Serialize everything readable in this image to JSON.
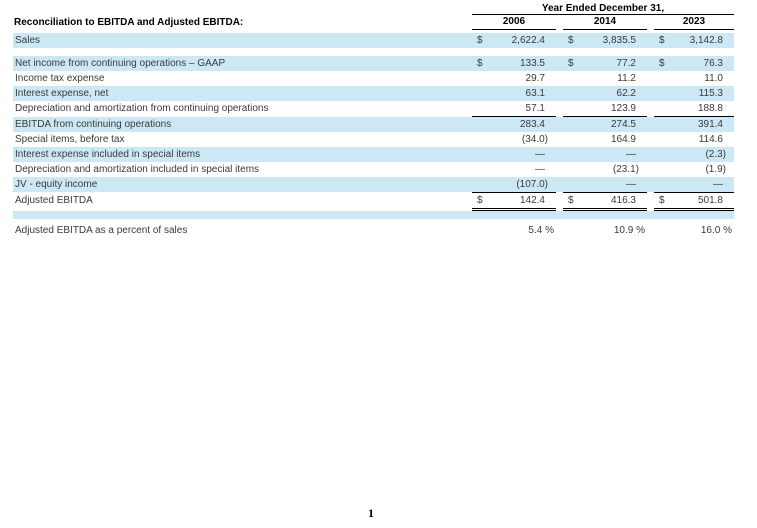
{
  "header": {
    "title": "Reconciliation to EBITDA and Adjusted EBITDA:",
    "period_label": "Year Ended December 31,",
    "years": [
      "2006",
      "2014",
      "2023"
    ]
  },
  "table": {
    "rows": [
      {
        "label": "Sales",
        "cells": [
          {
            "cur": "$",
            "val": "2,622.4"
          },
          {
            "cur": "$",
            "val": "3,835.5"
          },
          {
            "cur": "$",
            "val": "3,142.8"
          }
        ]
      },
      {
        "label": "Net income from continuing operations – GAAP",
        "cells": [
          {
            "cur": "$",
            "val": "133.5"
          },
          {
            "cur": "$",
            "val": "77.2"
          },
          {
            "cur": "$",
            "val": "76.3"
          }
        ]
      },
      {
        "label": "Income tax expense",
        "cells": [
          {
            "cur": "",
            "val": "29.7"
          },
          {
            "cur": "",
            "val": "11.2"
          },
          {
            "cur": "",
            "val": "11.0"
          }
        ]
      },
      {
        "label": "Interest expense, net",
        "cells": [
          {
            "cur": "",
            "val": "63.1"
          },
          {
            "cur": "",
            "val": "62.2"
          },
          {
            "cur": "",
            "val": "115.3"
          }
        ]
      },
      {
        "label": "Depreciation and amortization from continuing operations",
        "cells": [
          {
            "cur": "",
            "val": "57.1"
          },
          {
            "cur": "",
            "val": "123.9"
          },
          {
            "cur": "",
            "val": "188.8"
          }
        ]
      },
      {
        "label": "EBITDA from continuing operations",
        "cells": [
          {
            "cur": "",
            "val": "283.4"
          },
          {
            "cur": "",
            "val": "274.5"
          },
          {
            "cur": "",
            "val": "391.4"
          }
        ]
      },
      {
        "label": "Special items, before tax",
        "cells": [
          {
            "cur": "",
            "val": "(34.0)"
          },
          {
            "cur": "",
            "val": "164.9"
          },
          {
            "cur": "",
            "val": "114.6"
          }
        ]
      },
      {
        "label": "Interest expense included in special items",
        "cells": [
          {
            "cur": "",
            "val": "—"
          },
          {
            "cur": "",
            "val": "—"
          },
          {
            "cur": "",
            "val": "(2.3)"
          }
        ]
      },
      {
        "label": "Depreciation and amortization included in special items",
        "cells": [
          {
            "cur": "",
            "val": "—"
          },
          {
            "cur": "",
            "val": "(23.1)"
          },
          {
            "cur": "",
            "val": "(1.9)"
          }
        ]
      },
      {
        "label": "JV - equity income",
        "cells": [
          {
            "cur": "",
            "val": "(107.0)"
          },
          {
            "cur": "",
            "val": "—"
          },
          {
            "cur": "",
            "val": "—"
          }
        ]
      },
      {
        "label": "Adjusted EBITDA",
        "cells": [
          {
            "cur": "$",
            "val": "142.4"
          },
          {
            "cur": "$",
            "val": "416.3"
          },
          {
            "cur": "$",
            "val": "501.8"
          }
        ]
      },
      {
        "label": "Adjusted EBITDA as a percent of sales",
        "cells": [
          {
            "cur": "",
            "val": "5.4 %"
          },
          {
            "cur": "",
            "val": "10.9 %"
          },
          {
            "cur": "",
            "val": "16.0 %"
          }
        ]
      }
    ]
  },
  "footer": {
    "page_number": "1"
  },
  "colors": {
    "row_highlight": "#cde8f5",
    "rule": "#000000"
  }
}
